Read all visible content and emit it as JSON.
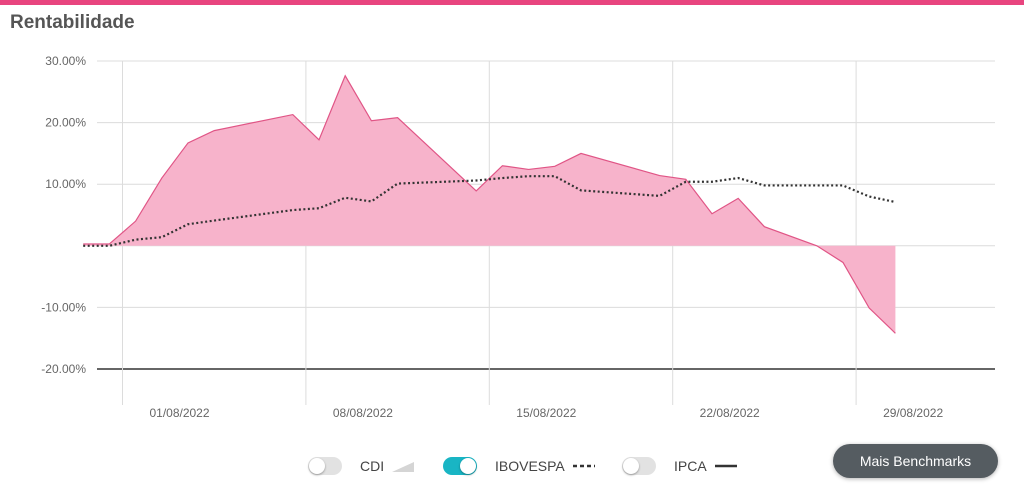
{
  "title": "Rentabilidade",
  "legend": {
    "cdi": {
      "label": "CDI",
      "enabled": false
    },
    "ibovespa": {
      "label": "IBOVESPA",
      "enabled": true
    },
    "ipca": {
      "label": "IPCA",
      "enabled": false
    }
  },
  "more_button_label": "Mais Benchmarks",
  "colors": {
    "fund": "#f7b3cb",
    "fund_line": "#e05586",
    "ibovespa": "#333333",
    "toggle_on": "#19b5c4",
    "accent": "#e8457f"
  },
  "chart_data": {
    "type": "area",
    "ylim": [
      -20,
      30
    ],
    "ytick_values": [
      30,
      20,
      10,
      0,
      -10,
      -20
    ],
    "yticks": [
      "30.00%",
      "20.00%",
      "10.00%",
      "",
      "-10.00%",
      "-20.00%"
    ],
    "xticks": [
      {
        "label": "01/08/2022",
        "day": 1
      },
      {
        "label": "08/08/2022",
        "day": 8
      },
      {
        "label": "15/08/2022",
        "day": 15
      },
      {
        "label": "22/08/2022",
        "day": 22
      },
      {
        "label": "29/08/2022",
        "day": 29
      }
    ],
    "series": [
      {
        "type": "area",
        "points": [
          [
            -0.5,
            0.3
          ],
          [
            0.5,
            0.3
          ],
          [
            1.5,
            4
          ],
          [
            2.5,
            11
          ],
          [
            3.5,
            16.7
          ],
          [
            4.5,
            18.7
          ],
          [
            7.5,
            21.3
          ],
          [
            8.5,
            17.2
          ],
          [
            9.5,
            27.6
          ],
          [
            10.5,
            20.3
          ],
          [
            11.5,
            20.8
          ],
          [
            14.5,
            8.9
          ],
          [
            15.5,
            13
          ],
          [
            16.5,
            12.4
          ],
          [
            17.5,
            12.9
          ],
          [
            18.5,
            15
          ],
          [
            21.5,
            11.4
          ],
          [
            22.5,
            10.8
          ],
          [
            23.5,
            5.2
          ],
          [
            24.5,
            7.7
          ],
          [
            25.5,
            3.1
          ],
          [
            27.5,
            0
          ],
          [
            28.5,
            -2.7
          ],
          [
            29.5,
            -10.1
          ],
          [
            30.5,
            -14.2
          ]
        ]
      },
      {
        "name": "IBOVESPA",
        "type": "line",
        "points": [
          [
            -0.5,
            0
          ],
          [
            0.5,
            0
          ],
          [
            1.5,
            1
          ],
          [
            2.5,
            1.4
          ],
          [
            3.5,
            3.5
          ],
          [
            4.5,
            4.1
          ],
          [
            7.5,
            5.8
          ],
          [
            8.5,
            6.1
          ],
          [
            9.5,
            7.8
          ],
          [
            10.5,
            7.2
          ],
          [
            11.5,
            10.1
          ],
          [
            14.5,
            10.6
          ],
          [
            15.5,
            11
          ],
          [
            16.5,
            11.3
          ],
          [
            17.5,
            11.3
          ],
          [
            18.5,
            9
          ],
          [
            21.5,
            8.1
          ],
          [
            22.5,
            10.4
          ],
          [
            23.5,
            10.4
          ],
          [
            24.5,
            11
          ],
          [
            25.5,
            9.8
          ],
          [
            28.5,
            9.8
          ],
          [
            29.5,
            8
          ],
          [
            30.5,
            7.1
          ]
        ]
      }
    ]
  }
}
